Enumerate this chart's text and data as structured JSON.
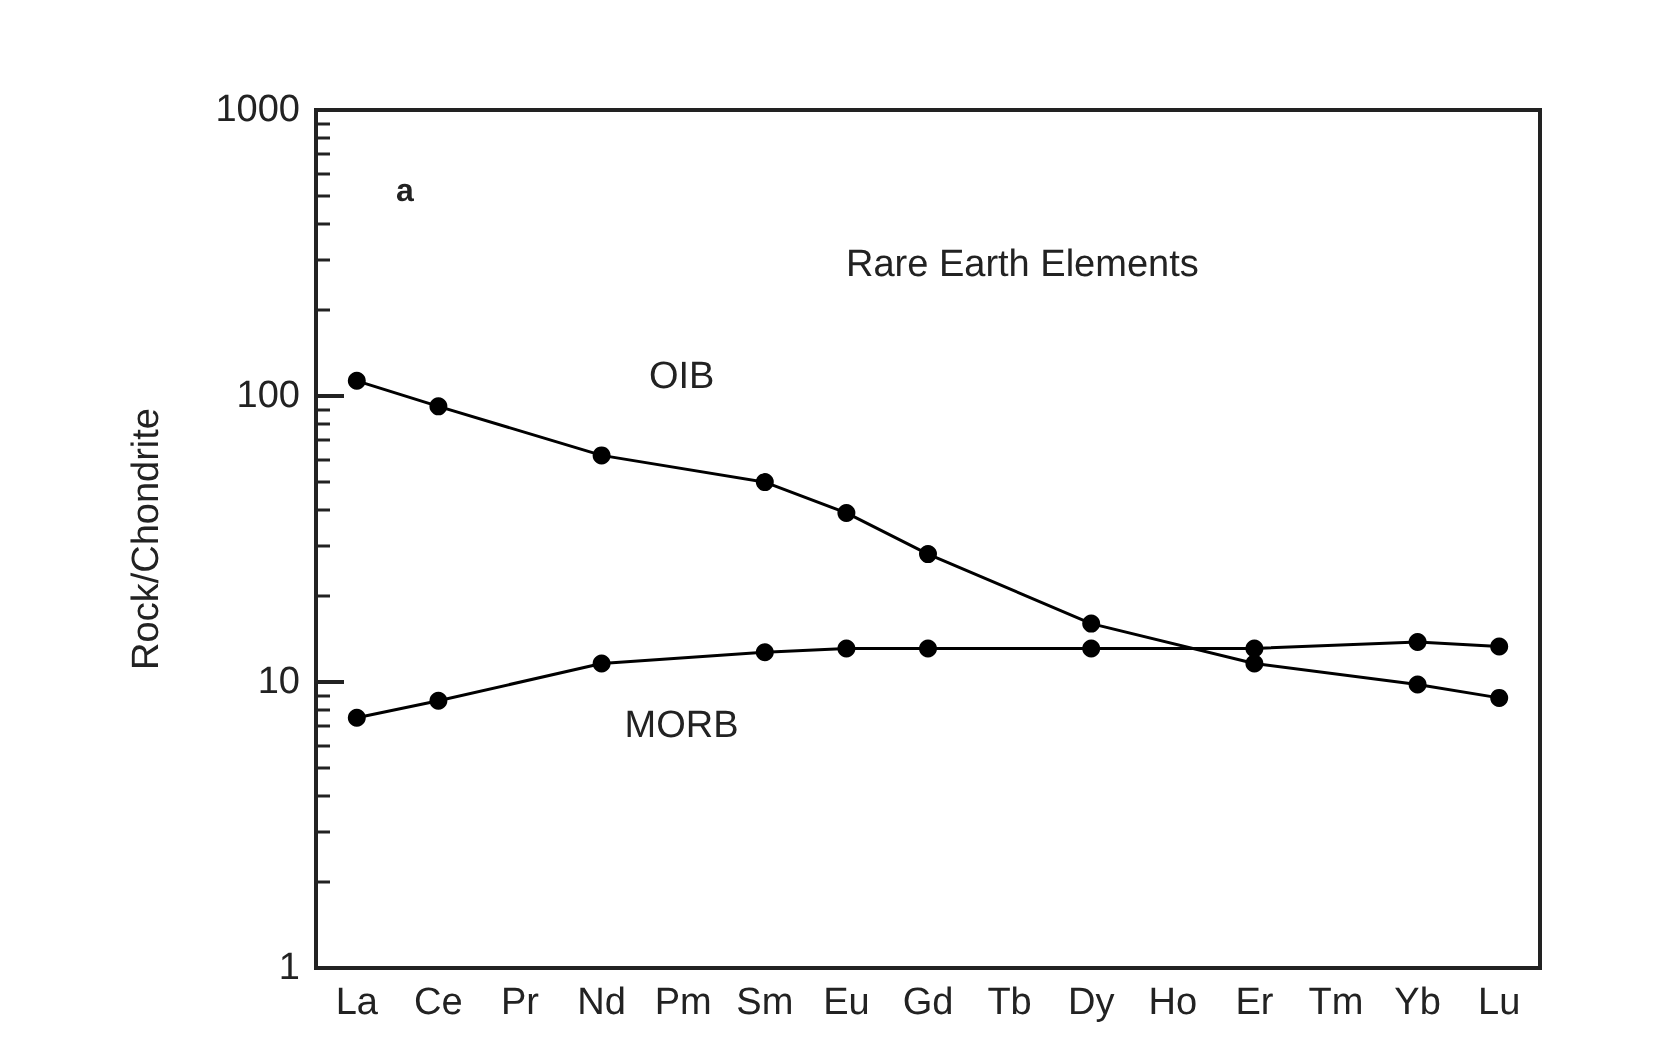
{
  "chart_data": {
    "type": "line",
    "ylabel": "Rock/Chondrite",
    "annotations": [
      "a",
      "Rare Earth Elements"
    ],
    "categories": [
      "La",
      "Ce",
      "Pr",
      "Nd",
      "Pm",
      "Sm",
      "Eu",
      "Gd",
      "Tb",
      "Dy",
      "Ho",
      "Er",
      "Tm",
      "Yb",
      "Lu"
    ],
    "series": [
      {
        "name": "OIB",
        "color": "#000000",
        "values": [
          113,
          92,
          null,
          62,
          null,
          50,
          39,
          28,
          null,
          16,
          null,
          11.6,
          null,
          9.8,
          8.8
        ]
      },
      {
        "name": "MORB",
        "color": "#000000",
        "values": [
          7.5,
          8.6,
          null,
          11.6,
          null,
          12.7,
          13.1,
          13.1,
          null,
          13.1,
          null,
          13.1,
          null,
          13.8,
          13.3
        ]
      }
    ],
    "log": "y",
    "ylim": [
      1,
      1000
    ],
    "yticks": [
      1,
      10,
      100,
      1000
    ],
    "marker": "circle",
    "line_style": "solid",
    "grid": false,
    "legend": false
  }
}
